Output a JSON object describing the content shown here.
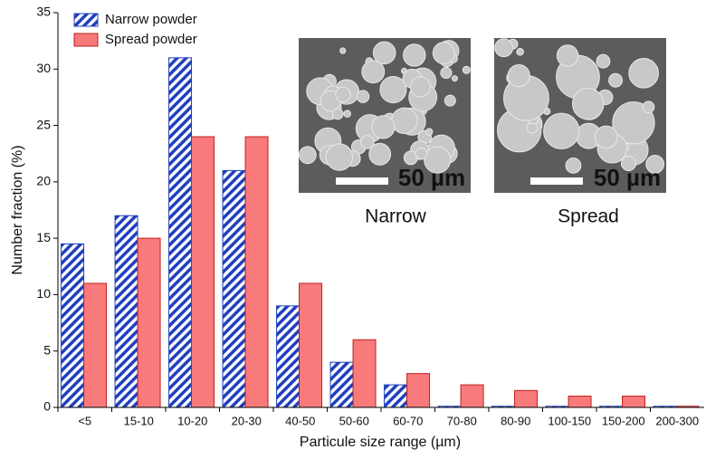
{
  "chart_data": {
    "type": "bar",
    "xlabel": "Particule size range (µm)",
    "ylabel": "Number fraction (%)",
    "categories": [
      "<5",
      "15-10",
      "10-20",
      "20-30",
      "40-50",
      "50-60",
      "60-70",
      "70-80",
      "80-90",
      "100-150",
      "150-200",
      "200-300"
    ],
    "series": [
      {
        "name": "Narrow powder",
        "color": "#1f3fbf",
        "hatch": true,
        "values": [
          14.5,
          17,
          31,
          21,
          9,
          4,
          2,
          0.1,
          0.1,
          0.1,
          0.1,
          0.1
        ]
      },
      {
        "name": "Spread powder",
        "color": "#f87a7a",
        "hatch": false,
        "values": [
          11,
          15,
          24,
          24,
          11,
          6,
          3,
          2,
          1.5,
          1,
          1,
          0.1
        ]
      }
    ],
    "ylim": [
      0,
      35
    ],
    "yticks": [
      0,
      5,
      10,
      15,
      20,
      25,
      30,
      35
    ],
    "legend": "upper left",
    "inset_labels": [
      "Narrow",
      "Spread"
    ],
    "scale_bar": "50 µm"
  }
}
